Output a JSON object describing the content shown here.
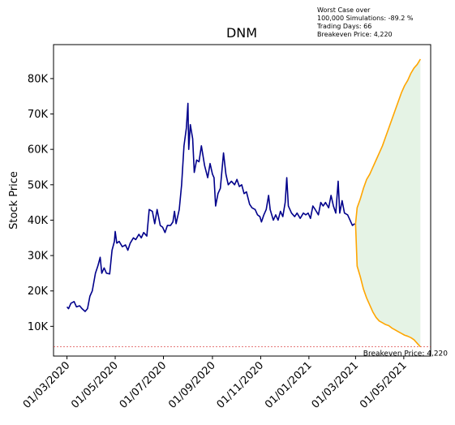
{
  "chart_data": {
    "type": "line",
    "title": "DNM",
    "xlabel": "",
    "ylabel": "Stock Price",
    "annotation_lines": [
      "Worst Case over",
      "100,000 Simulations: -89.2 %",
      "Trading Days: 66",
      "Breakeven Price: 4,220"
    ],
    "breakeven": {
      "value": 4220,
      "label": "Breakeven Price: 4,220",
      "color": "#d62728"
    },
    "x_ticks": [
      "01/03/2020",
      "01/05/2020",
      "01/07/2020",
      "01/09/2020",
      "01/11/2020",
      "01/01/2021",
      "01/03/2021",
      "01/05/2021"
    ],
    "x_tick_dates": [
      "2020-03-01",
      "2020-05-01",
      "2020-07-01",
      "2020-09-01",
      "2020-11-01",
      "2021-01-01",
      "2021-03-01",
      "2021-05-01"
    ],
    "y_ticks": [
      10000,
      20000,
      30000,
      40000,
      50000,
      60000,
      70000,
      80000
    ],
    "y_tick_labels": [
      "10K",
      "20K",
      "30K",
      "40K",
      "50K",
      "60K",
      "70K",
      "80K"
    ],
    "xlim": [
      "2020-02-13",
      "2021-06-04"
    ],
    "ylim": [
      1600,
      89600
    ],
    "grid": false,
    "series": [
      {
        "color": "#00008b",
        "points": [
          [
            "2020-03-01",
            15500
          ],
          [
            "2020-03-03",
            15000
          ],
          [
            "2020-03-06",
            16500
          ],
          [
            "2020-03-10",
            17000
          ],
          [
            "2020-03-13",
            15500
          ],
          [
            "2020-03-17",
            15800
          ],
          [
            "2020-03-20",
            15000
          ],
          [
            "2020-03-24",
            14200
          ],
          [
            "2020-03-27",
            15000
          ],
          [
            "2020-03-30",
            18500
          ],
          [
            "2020-04-02",
            20000
          ],
          [
            "2020-04-06",
            25000
          ],
          [
            "2020-04-09",
            27000
          ],
          [
            "2020-04-12",
            29500
          ],
          [
            "2020-04-14",
            25000
          ],
          [
            "2020-04-17",
            26500
          ],
          [
            "2020-04-20",
            25000
          ],
          [
            "2020-04-24",
            24800
          ],
          [
            "2020-04-27",
            31500
          ],
          [
            "2020-04-30",
            34000
          ],
          [
            "2020-05-01",
            36800
          ],
          [
            "2020-05-03",
            33500
          ],
          [
            "2020-05-06",
            34000
          ],
          [
            "2020-05-10",
            32500
          ],
          [
            "2020-05-14",
            33000
          ],
          [
            "2020-05-17",
            31500
          ],
          [
            "2020-05-20",
            33500
          ],
          [
            "2020-05-24",
            35000
          ],
          [
            "2020-05-27",
            34500
          ],
          [
            "2020-05-31",
            36000
          ],
          [
            "2020-06-03",
            35000
          ],
          [
            "2020-06-06",
            36500
          ],
          [
            "2020-06-10",
            35500
          ],
          [
            "2020-06-13",
            43000
          ],
          [
            "2020-06-17",
            42500
          ],
          [
            "2020-06-20",
            39000
          ],
          [
            "2020-06-23",
            43000
          ],
          [
            "2020-06-27",
            38500
          ],
          [
            "2020-06-30",
            38000
          ],
          [
            "2020-07-03",
            36500
          ],
          [
            "2020-07-06",
            38500
          ],
          [
            "2020-07-10",
            38500
          ],
          [
            "2020-07-13",
            39500
          ],
          [
            "2020-07-15",
            42500
          ],
          [
            "2020-07-17",
            39000
          ],
          [
            "2020-07-21",
            43000
          ],
          [
            "2020-07-24",
            50000
          ],
          [
            "2020-07-27",
            61000
          ],
          [
            "2020-07-30",
            66000
          ],
          [
            "2020-08-01",
            73000
          ],
          [
            "2020-08-02",
            60000
          ],
          [
            "2020-08-04",
            67000
          ],
          [
            "2020-08-07",
            63000
          ],
          [
            "2020-08-09",
            53500
          ],
          [
            "2020-08-12",
            57000
          ],
          [
            "2020-08-15",
            56500
          ],
          [
            "2020-08-18",
            61000
          ],
          [
            "2020-08-22",
            55500
          ],
          [
            "2020-08-26",
            52000
          ],
          [
            "2020-08-29",
            56000
          ],
          [
            "2020-09-01",
            53000
          ],
          [
            "2020-09-03",
            52000
          ],
          [
            "2020-09-05",
            44000
          ],
          [
            "2020-09-08",
            47500
          ],
          [
            "2020-09-11",
            49000
          ],
          [
            "2020-09-15",
            59000
          ],
          [
            "2020-09-18",
            53000
          ],
          [
            "2020-09-21",
            50000
          ],
          [
            "2020-09-25",
            51000
          ],
          [
            "2020-09-29",
            50000
          ],
          [
            "2020-10-02",
            51500
          ],
          [
            "2020-10-05",
            49500
          ],
          [
            "2020-10-08",
            50000
          ],
          [
            "2020-10-11",
            47500
          ],
          [
            "2020-10-14",
            48000
          ],
          [
            "2020-10-18",
            44500
          ],
          [
            "2020-10-21",
            43500
          ],
          [
            "2020-10-25",
            43000
          ],
          [
            "2020-10-28",
            41500
          ],
          [
            "2020-10-31",
            41000
          ],
          [
            "2020-11-02",
            39500
          ],
          [
            "2020-11-05",
            41500
          ],
          [
            "2020-11-08",
            43000
          ],
          [
            "2020-11-11",
            47000
          ],
          [
            "2020-11-13",
            43000
          ],
          [
            "2020-11-17",
            40000
          ],
          [
            "2020-11-20",
            41500
          ],
          [
            "2020-11-23",
            40000
          ],
          [
            "2020-11-26",
            42500
          ],
          [
            "2020-11-29",
            41000
          ],
          [
            "2020-12-02",
            45000
          ],
          [
            "2020-12-04",
            52000
          ],
          [
            "2020-12-06",
            44000
          ],
          [
            "2020-12-10",
            42000
          ],
          [
            "2020-12-14",
            41000
          ],
          [
            "2020-12-17",
            42000
          ],
          [
            "2020-12-21",
            40500
          ],
          [
            "2020-12-25",
            42000
          ],
          [
            "2020-12-28",
            41500
          ],
          [
            "2020-12-31",
            42000
          ],
          [
            "2021-01-03",
            40500
          ],
          [
            "2021-01-06",
            44000
          ],
          [
            "2021-01-09",
            43000
          ],
          [
            "2021-01-13",
            41500
          ],
          [
            "2021-01-16",
            45000
          ],
          [
            "2021-01-19",
            44000
          ],
          [
            "2021-01-22",
            45000
          ],
          [
            "2021-01-26",
            43500
          ],
          [
            "2021-01-29",
            47000
          ],
          [
            "2021-02-01",
            44000
          ],
          [
            "2021-02-04",
            42000
          ],
          [
            "2021-02-07",
            51000
          ],
          [
            "2021-02-09",
            42000
          ],
          [
            "2021-02-12",
            45500
          ],
          [
            "2021-02-15",
            42000
          ],
          [
            "2021-02-19",
            41500
          ],
          [
            "2021-02-22",
            40000
          ],
          [
            "2021-02-25",
            38500
          ],
          [
            "2021-02-28",
            39000
          ]
        ]
      },
      {
        "color": "#ffa500",
        "role": "upper",
        "points": [
          [
            "2021-03-01",
            39000
          ],
          [
            "2021-03-03",
            43500
          ],
          [
            "2021-03-07",
            46000
          ],
          [
            "2021-03-11",
            49000
          ],
          [
            "2021-03-15",
            51500
          ],
          [
            "2021-03-19",
            53000
          ],
          [
            "2021-03-23",
            55000
          ],
          [
            "2021-03-27",
            57000
          ],
          [
            "2021-03-31",
            59000
          ],
          [
            "2021-04-04",
            61000
          ],
          [
            "2021-04-08",
            63500
          ],
          [
            "2021-04-12",
            66000
          ],
          [
            "2021-04-16",
            68500
          ],
          [
            "2021-04-20",
            71000
          ],
          [
            "2021-04-24",
            73500
          ],
          [
            "2021-04-28",
            76000
          ],
          [
            "2021-05-02",
            78000
          ],
          [
            "2021-05-06",
            79500
          ],
          [
            "2021-05-10",
            81500
          ],
          [
            "2021-05-14",
            83000
          ],
          [
            "2021-05-18",
            84000
          ],
          [
            "2021-05-22",
            85500
          ]
        ]
      },
      {
        "color": "#ffa500",
        "role": "lower",
        "points": [
          [
            "2021-03-01",
            39000
          ],
          [
            "2021-03-03",
            27000
          ],
          [
            "2021-03-07",
            24000
          ],
          [
            "2021-03-11",
            20500
          ],
          [
            "2021-03-15",
            18000
          ],
          [
            "2021-03-19",
            16000
          ],
          [
            "2021-03-23",
            14000
          ],
          [
            "2021-03-27",
            12500
          ],
          [
            "2021-03-31",
            11500
          ],
          [
            "2021-04-04",
            11000
          ],
          [
            "2021-04-08",
            10500
          ],
          [
            "2021-04-12",
            10200
          ],
          [
            "2021-04-16",
            9500
          ],
          [
            "2021-04-20",
            9000
          ],
          [
            "2021-04-24",
            8500
          ],
          [
            "2021-04-28",
            8000
          ],
          [
            "2021-05-02",
            7500
          ],
          [
            "2021-05-06",
            7200
          ],
          [
            "2021-05-10",
            6800
          ],
          [
            "2021-05-14",
            6200
          ],
          [
            "2021-05-18",
            5200
          ],
          [
            "2021-05-22",
            4200
          ]
        ]
      }
    ],
    "fill_between": {
      "color": "#2ca02c",
      "opacity": 0.12
    },
    "x_tick_rotation_deg": 45
  }
}
